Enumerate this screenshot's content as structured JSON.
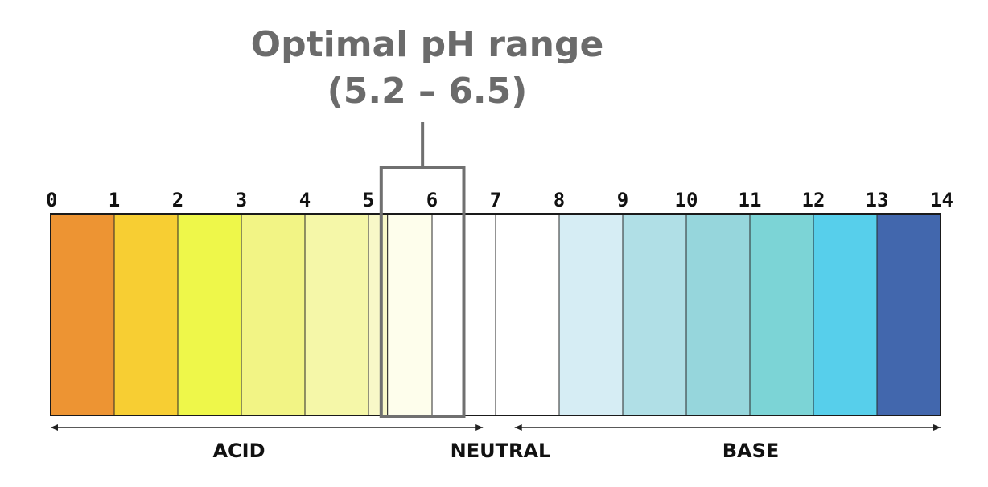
{
  "title": {
    "line1": "Optimal pH range",
    "line2": "(5.2 – 6.5)"
  },
  "scale": {
    "min": 0,
    "max": 14,
    "tick_labels": [
      "0",
      "1",
      "2",
      "3",
      "4",
      "5",
      "6",
      "7",
      "8",
      "9",
      "10",
      "11",
      "12",
      "13",
      "14"
    ],
    "segment_colors": [
      "#ED9433",
      "#F7CE33",
      "#EEF74A",
      "#F2F485",
      "#F5F7A8",
      "#F8F8C8",
      "#FEFEEC",
      "#FFFFFF",
      "#FFFFFF",
      "#D6EDF4",
      "#B0DFE6",
      "#96D6DC",
      "#7CD4D6",
      "#57CFEB",
      "#4267AD"
    ]
  },
  "optimal_range": {
    "low": 5.2,
    "high": 6.5
  },
  "zones": {
    "acid": {
      "label": "ACID",
      "from": 0,
      "to": 6.8
    },
    "neutral": {
      "label": "NEUTRAL"
    },
    "base": {
      "label": "BASE",
      "from": 7.3,
      "to": 14
    }
  },
  "colors": {
    "title": "#6B6B6B",
    "box": "#707070",
    "outline": "#1A1A1A"
  }
}
